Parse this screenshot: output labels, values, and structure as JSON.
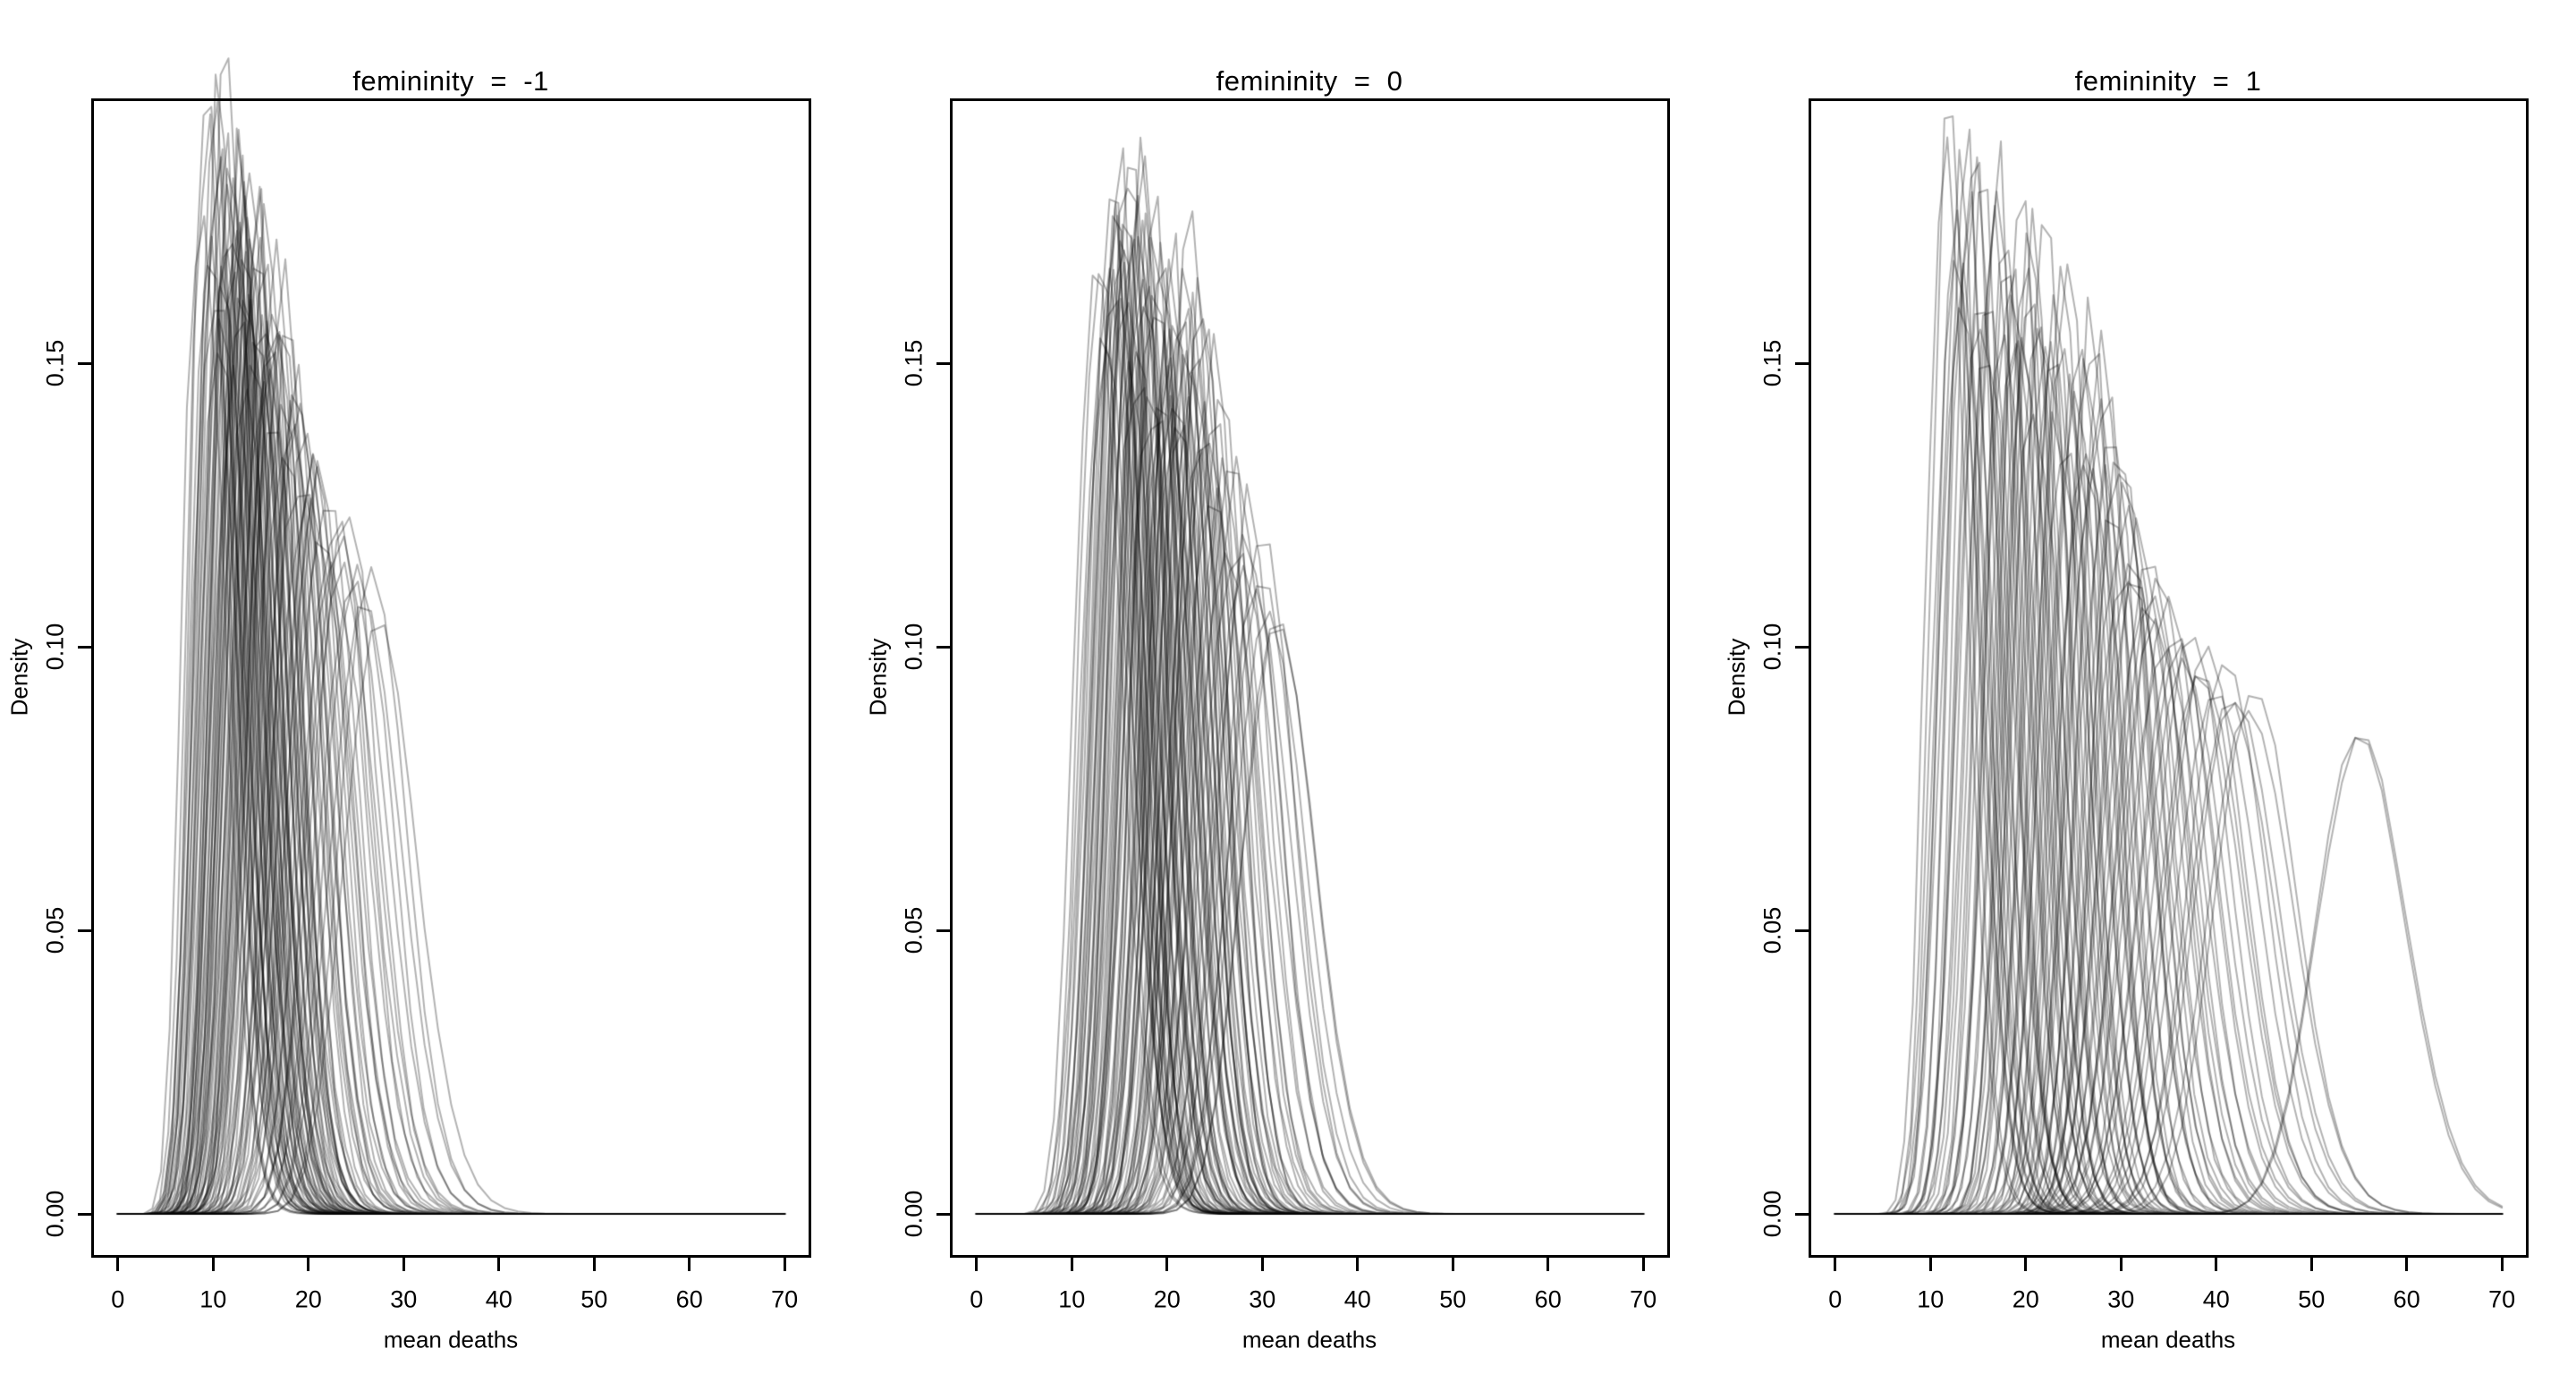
{
  "chart_data": {
    "type": "line",
    "description": "Posterior density curves of mean hurricane deaths at three femininity values; many semi-transparent black density curves per panel",
    "curve_color": "#000000",
    "curve_alpha": 0.3,
    "curve_format": "[mode_of_mean_deaths, peak_density]",
    "x_axis": {
      "label": "mean deaths",
      "ticks": [
        "0",
        "10",
        "20",
        "30",
        "40",
        "50",
        "60",
        "70"
      ],
      "range": [
        -2.8,
        72.8
      ]
    },
    "y_axis": {
      "label": "Density",
      "ticks": [
        "0.00",
        "0.05",
        "0.10",
        "0.15"
      ],
      "range": [
        -0.0077,
        0.1967
      ]
    },
    "panels": [
      {
        "title": "femininity  =  -1",
        "curves": [
          [
            8.8,
            0.185
          ],
          [
            9.2,
            0.19
          ],
          [
            9.5,
            0.205
          ],
          [
            9.8,
            0.178
          ],
          [
            10.1,
            0.192
          ],
          [
            10.3,
            0.165
          ],
          [
            10.5,
            0.183
          ],
          [
            10.7,
            0.196
          ],
          [
            10.9,
            0.172
          ],
          [
            11.1,
            0.188
          ],
          [
            11.3,
            0.158
          ],
          [
            11.5,
            0.175
          ],
          [
            11.7,
            0.19
          ],
          [
            11.9,
            0.163
          ],
          [
            12.1,
            0.18
          ],
          [
            12.3,
            0.152
          ],
          [
            12.5,
            0.17
          ],
          [
            12.7,
            0.185
          ],
          [
            12.9,
            0.16
          ],
          [
            13.1,
            0.176
          ],
          [
            13.3,
            0.148
          ],
          [
            13.5,
            0.168
          ],
          [
            13.7,
            0.182
          ],
          [
            13.9,
            0.156
          ],
          [
            14.1,
            0.173
          ],
          [
            14.3,
            0.145
          ],
          [
            14.5,
            0.165
          ],
          [
            14.7,
            0.178
          ],
          [
            14.9,
            0.154
          ],
          [
            15.1,
            0.17
          ],
          [
            15.3,
            0.142
          ],
          [
            15.5,
            0.162
          ],
          [
            15.7,
            0.175
          ],
          [
            15.9,
            0.15
          ],
          [
            16.1,
            0.166
          ],
          [
            16.3,
            0.139
          ],
          [
            16.5,
            0.158
          ],
          [
            16.8,
            0.171
          ],
          [
            17.1,
            0.147
          ],
          [
            17.4,
            0.162
          ],
          [
            17.7,
            0.136
          ],
          [
            18.0,
            0.155
          ],
          [
            18.3,
            0.144
          ],
          [
            18.6,
            0.15
          ],
          [
            18.9,
            0.133
          ],
          [
            19.2,
            0.147
          ],
          [
            19.5,
            0.127
          ],
          [
            19.8,
            0.143
          ],
          [
            20.1,
            0.131
          ],
          [
            20.4,
            0.139
          ],
          [
            20.8,
            0.124
          ],
          [
            21.2,
            0.136
          ],
          [
            21.6,
            0.121
          ],
          [
            22.0,
            0.132
          ],
          [
            22.5,
            0.118
          ],
          [
            23.0,
            0.128
          ],
          [
            23.5,
            0.115
          ],
          [
            24.0,
            0.124
          ],
          [
            24.6,
            0.112
          ],
          [
            25.2,
            0.12
          ],
          [
            25.9,
            0.108
          ],
          [
            26.6,
            0.115
          ],
          [
            27.4,
            0.104
          ],
          [
            10.2,
            0.186
          ],
          [
            11.0,
            0.17
          ],
          [
            11.8,
            0.181
          ],
          [
            12.6,
            0.164
          ],
          [
            13.4,
            0.177
          ],
          [
            14.2,
            0.159
          ],
          [
            15.0,
            0.168
          ],
          [
            15.8,
            0.147
          ],
          [
            16.6,
            0.16
          ],
          [
            12.2,
            0.174
          ],
          [
            13.0,
            0.188
          ],
          [
            13.8,
            0.166
          ],
          [
            14.6,
            0.18
          ],
          [
            11.4,
            0.202
          ],
          [
            12.8,
            0.179
          ],
          [
            14.4,
            0.17
          ],
          [
            16.2,
            0.152
          ],
          [
            17.2,
            0.158
          ],
          [
            18.4,
            0.139
          ],
          [
            9.9,
            0.17
          ],
          [
            10.6,
            0.16
          ],
          [
            12.0,
            0.19
          ],
          [
            13.2,
            0.162
          ],
          [
            15.4,
            0.155
          ],
          [
            19.0,
            0.14
          ],
          [
            21.0,
            0.128
          ],
          [
            23.2,
            0.12
          ]
        ]
      },
      {
        "title": "femininity  =  0",
        "curves": [
          [
            12.5,
            0.165
          ],
          [
            13.0,
            0.17
          ],
          [
            13.4,
            0.155
          ],
          [
            13.8,
            0.168
          ],
          [
            14.2,
            0.18
          ],
          [
            14.5,
            0.158
          ],
          [
            14.8,
            0.172
          ],
          [
            15.1,
            0.185
          ],
          [
            15.4,
            0.162
          ],
          [
            15.7,
            0.175
          ],
          [
            16.0,
            0.19
          ],
          [
            16.3,
            0.165
          ],
          [
            16.6,
            0.178
          ],
          [
            16.9,
            0.152
          ],
          [
            17.2,
            0.168
          ],
          [
            17.5,
            0.18
          ],
          [
            17.8,
            0.157
          ],
          [
            18.1,
            0.17
          ],
          [
            18.4,
            0.146
          ],
          [
            18.7,
            0.162
          ],
          [
            19.0,
            0.174
          ],
          [
            19.3,
            0.151
          ],
          [
            19.6,
            0.165
          ],
          [
            19.9,
            0.142
          ],
          [
            20.2,
            0.157
          ],
          [
            20.5,
            0.168
          ],
          [
            20.8,
            0.147
          ],
          [
            21.1,
            0.16
          ],
          [
            21.4,
            0.138
          ],
          [
            21.7,
            0.152
          ],
          [
            22.0,
            0.163
          ],
          [
            22.3,
            0.143
          ],
          [
            22.6,
            0.155
          ],
          [
            22.9,
            0.134
          ],
          [
            23.2,
            0.148
          ],
          [
            23.5,
            0.159
          ],
          [
            23.8,
            0.14
          ],
          [
            24.1,
            0.151
          ],
          [
            24.5,
            0.131
          ],
          [
            24.9,
            0.144
          ],
          [
            25.3,
            0.126
          ],
          [
            25.7,
            0.139
          ],
          [
            26.1,
            0.122
          ],
          [
            26.5,
            0.134
          ],
          [
            27.0,
            0.118
          ],
          [
            27.5,
            0.129
          ],
          [
            28.0,
            0.114
          ],
          [
            28.6,
            0.124
          ],
          [
            29.2,
            0.11
          ],
          [
            29.9,
            0.119
          ],
          [
            30.6,
            0.106
          ],
          [
            31.5,
            0.105
          ],
          [
            31.6,
            0.104
          ],
          [
            14.0,
            0.163
          ],
          [
            14.6,
            0.176
          ],
          [
            15.2,
            0.155
          ],
          [
            15.8,
            0.168
          ],
          [
            16.4,
            0.182
          ],
          [
            17.0,
            0.16
          ],
          [
            17.6,
            0.173
          ],
          [
            18.2,
            0.15
          ],
          [
            18.8,
            0.164
          ],
          [
            19.4,
            0.177
          ],
          [
            20.0,
            0.153
          ],
          [
            20.6,
            0.166
          ],
          [
            21.2,
            0.145
          ],
          [
            21.8,
            0.158
          ],
          [
            22.4,
            0.17
          ],
          [
            23.0,
            0.15
          ],
          [
            23.6,
            0.162
          ],
          [
            24.2,
            0.137
          ],
          [
            25.0,
            0.148
          ],
          [
            13.6,
            0.16
          ],
          [
            15.0,
            0.173
          ],
          [
            16.2,
            0.147
          ],
          [
            17.4,
            0.163
          ],
          [
            18.6,
            0.176
          ],
          [
            19.8,
            0.148
          ],
          [
            21.0,
            0.155
          ],
          [
            22.2,
            0.147
          ],
          [
            16.1,
            0.19
          ],
          [
            15.5,
            0.178
          ],
          [
            17.3,
            0.185
          ],
          [
            14.4,
            0.17
          ],
          [
            18.0,
            0.163
          ],
          [
            20.4,
            0.14
          ],
          [
            23.4,
            0.128
          ],
          [
            26.0,
            0.13
          ],
          [
            28.4,
            0.12
          ],
          [
            30.0,
            0.112
          ]
        ]
      },
      {
        "title": "femininity  =  1",
        "curves": [
          [
            11.5,
            0.185
          ],
          [
            12.0,
            0.19
          ],
          [
            12.5,
            0.17
          ],
          [
            13.0,
            0.18
          ],
          [
            13.5,
            0.162
          ],
          [
            14.0,
            0.175
          ],
          [
            14.5,
            0.188
          ],
          [
            15.0,
            0.165
          ],
          [
            15.5,
            0.178
          ],
          [
            16.0,
            0.155
          ],
          [
            16.5,
            0.17
          ],
          [
            17.0,
            0.183
          ],
          [
            17.5,
            0.16
          ],
          [
            18.0,
            0.173
          ],
          [
            18.5,
            0.15
          ],
          [
            19.0,
            0.164
          ],
          [
            19.5,
            0.176
          ],
          [
            20.0,
            0.154
          ],
          [
            20.5,
            0.167
          ],
          [
            21.0,
            0.145
          ],
          [
            21.5,
            0.158
          ],
          [
            22.0,
            0.17
          ],
          [
            22.5,
            0.148
          ],
          [
            23.0,
            0.161
          ],
          [
            23.5,
            0.14
          ],
          [
            24.0,
            0.153
          ],
          [
            24.5,
            0.165
          ],
          [
            25.0,
            0.143
          ],
          [
            25.5,
            0.155
          ],
          [
            26.0,
            0.135
          ],
          [
            26.5,
            0.148
          ],
          [
            27.0,
            0.158
          ],
          [
            27.5,
            0.138
          ],
          [
            28.0,
            0.15
          ],
          [
            28.5,
            0.13
          ],
          [
            29.0,
            0.142
          ],
          [
            29.5,
            0.124
          ],
          [
            30.0,
            0.135
          ],
          [
            30.5,
            0.118
          ],
          [
            31.0,
            0.128
          ],
          [
            31.5,
            0.112
          ],
          [
            32.0,
            0.122
          ],
          [
            32.5,
            0.108
          ],
          [
            33.0,
            0.117
          ],
          [
            33.5,
            0.104
          ],
          [
            34.0,
            0.113
          ],
          [
            34.5,
            0.1
          ],
          [
            35.0,
            0.109
          ],
          [
            35.8,
            0.103
          ],
          [
            36.6,
            0.097
          ],
          [
            37.4,
            0.102
          ],
          [
            38.2,
            0.095
          ],
          [
            39.0,
            0.1
          ],
          [
            40.0,
            0.093
          ],
          [
            41.0,
            0.098
          ],
          [
            42.0,
            0.091
          ],
          [
            43.5,
            0.089
          ],
          [
            44.0,
            0.093
          ],
          [
            55.0,
            0.085
          ],
          [
            55.2,
            0.084
          ],
          [
            13.2,
            0.168
          ],
          [
            14.8,
            0.18
          ],
          [
            16.2,
            0.162
          ],
          [
            17.8,
            0.175
          ],
          [
            19.2,
            0.157
          ],
          [
            20.8,
            0.17
          ],
          [
            22.2,
            0.152
          ],
          [
            23.8,
            0.163
          ],
          [
            25.2,
            0.147
          ],
          [
            26.8,
            0.157
          ],
          [
            28.2,
            0.144
          ],
          [
            29.8,
            0.132
          ],
          [
            31.2,
            0.12
          ],
          [
            33.2,
            0.11
          ],
          [
            12.8,
            0.175
          ],
          [
            15.2,
            0.16
          ],
          [
            18.2,
            0.168
          ],
          [
            21.2,
            0.155
          ],
          [
            24.2,
            0.142
          ],
          [
            27.2,
            0.13
          ],
          [
            30.2,
            0.125
          ],
          [
            16.8,
            0.178
          ],
          [
            19.8,
            0.165
          ],
          [
            23.2,
            0.15
          ],
          [
            26.2,
            0.14
          ],
          [
            36.0,
            0.1
          ],
          [
            38.6,
            0.096
          ],
          [
            41.5,
            0.09
          ],
          [
            13.8,
            0.19
          ],
          [
            20.2,
            0.16
          ]
        ]
      }
    ]
  }
}
